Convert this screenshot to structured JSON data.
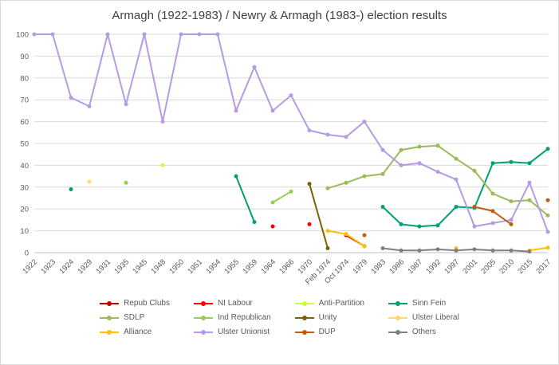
{
  "chart_data": {
    "type": "line",
    "title": "Armagh (1922-1983) / Newry & Armagh (1983-) election results",
    "xlabel": "",
    "ylabel": "",
    "ylim": [
      0,
      100
    ],
    "ytick_step": 10,
    "yticks": [
      0,
      10,
      20,
      30,
      40,
      50,
      60,
      70,
      80,
      90,
      100
    ],
    "grid": true,
    "legend_position": "bottom",
    "categories": [
      "1922",
      "1923",
      "1924",
      "1929",
      "1931",
      "1935",
      "1945",
      "1948",
      "1950",
      "1951",
      "1954",
      "1955",
      "1959",
      "1964",
      "1966",
      "1970",
      "Feb 1974",
      "Oct 1974",
      "1979",
      "1983",
      "1986",
      "1987",
      "1992",
      "1997",
      "2001",
      "2005",
      "2010",
      "2015",
      "2017"
    ],
    "series": [
      {
        "name": "Repub Clubs",
        "color": "#C00000",
        "values": [
          null,
          null,
          null,
          null,
          null,
          null,
          null,
          null,
          null,
          null,
          null,
          null,
          null,
          null,
          null,
          null,
          null,
          8,
          3,
          null,
          null,
          null,
          null,
          null,
          null,
          null,
          null,
          null,
          null
        ]
      },
      {
        "name": "NI Labour",
        "color": "#FF0000",
        "values": [
          null,
          null,
          null,
          null,
          null,
          null,
          null,
          null,
          null,
          null,
          null,
          null,
          null,
          12,
          null,
          13,
          null,
          null,
          null,
          null,
          null,
          null,
          null,
          null,
          null,
          null,
          null,
          null,
          null
        ]
      },
      {
        "name": "Anti-Partition",
        "color": "#CCFF33",
        "values": [
          null,
          null,
          null,
          null,
          null,
          null,
          null,
          40,
          null,
          null,
          null,
          null,
          null,
          null,
          null,
          null,
          null,
          null,
          null,
          null,
          null,
          null,
          null,
          null,
          null,
          null,
          null,
          null,
          null
        ]
      },
      {
        "name": "Sinn Fein",
        "color": "#00A070",
        "values": [
          null,
          null,
          29,
          null,
          null,
          null,
          null,
          null,
          null,
          null,
          null,
          35,
          14,
          null,
          null,
          null,
          null,
          null,
          null,
          21,
          13,
          12,
          12.5,
          21,
          20.5,
          41,
          41.5,
          41,
          47.5
        ]
      },
      {
        "name": "SDLP",
        "color": "#9BBB59",
        "values": [
          null,
          null,
          null,
          null,
          null,
          null,
          null,
          null,
          null,
          null,
          null,
          null,
          null,
          null,
          null,
          null,
          29.5,
          32,
          35,
          36,
          47,
          48.5,
          49,
          43,
          37.5,
          27,
          23.5,
          24,
          17
        ]
      },
      {
        "name": "Ind Republican",
        "color": "#92D050",
        "values": [
          null,
          null,
          null,
          null,
          null,
          32,
          null,
          null,
          null,
          null,
          null,
          null,
          null,
          23,
          28,
          null,
          null,
          null,
          null,
          null,
          null,
          null,
          null,
          null,
          null,
          null,
          null,
          null,
          null
        ]
      },
      {
        "name": "Unity",
        "color": "#7F6000",
        "values": [
          null,
          null,
          null,
          null,
          null,
          null,
          null,
          null,
          null,
          null,
          null,
          null,
          null,
          null,
          null,
          31.5,
          2,
          null,
          null,
          null,
          null,
          null,
          null,
          null,
          null,
          null,
          null,
          null,
          null
        ]
      },
      {
        "name": "Ulster Liberal",
        "color": "#FFD966",
        "values": [
          null,
          null,
          null,
          32.5,
          null,
          null,
          null,
          null,
          null,
          null,
          null,
          null,
          null,
          null,
          null,
          null,
          null,
          null,
          null,
          null,
          null,
          null,
          null,
          null,
          null,
          null,
          null,
          null,
          null
        ]
      },
      {
        "name": "Alliance",
        "color": "#FFC000",
        "values": [
          null,
          null,
          null,
          null,
          null,
          null,
          null,
          null,
          null,
          null,
          null,
          null,
          null,
          null,
          null,
          null,
          10,
          8.5,
          3,
          null,
          null,
          null,
          null,
          2,
          null,
          null,
          null,
          1,
          2.3
        ]
      },
      {
        "name": "Ulster Unionist",
        "color": "#B49CE4",
        "values": [
          100,
          100,
          71,
          67,
          100,
          68,
          100,
          60,
          100,
          100,
          100,
          65,
          85,
          65,
          72,
          56,
          54,
          53,
          60,
          47,
          40,
          41,
          37,
          33.5,
          12,
          13.5,
          15,
          32,
          9.5
        ]
      },
      {
        "name": "DUP",
        "color": "#C55A11",
        "values": [
          null,
          null,
          null,
          null,
          null,
          null,
          null,
          null,
          null,
          null,
          null,
          null,
          null,
          null,
          null,
          null,
          null,
          null,
          8,
          null,
          null,
          null,
          null,
          null,
          21,
          19,
          13,
          null,
          24
        ]
      },
      {
        "name": "Others",
        "color": "#808080",
        "values": [
          null,
          null,
          null,
          null,
          null,
          null,
          null,
          null,
          null,
          null,
          null,
          null,
          null,
          null,
          null,
          null,
          null,
          null,
          null,
          2,
          1,
          1,
          1.5,
          1,
          1.5,
          1,
          1,
          0.5,
          null
        ]
      }
    ]
  }
}
